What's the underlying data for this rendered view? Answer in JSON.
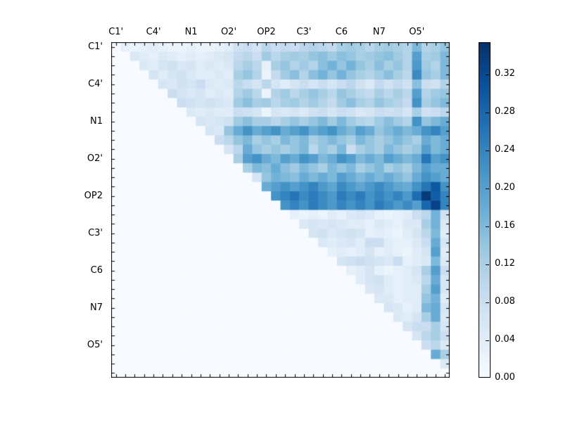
{
  "figure": {
    "background": "#ffffff"
  },
  "chart_data": {
    "type": "heatmap",
    "title": "",
    "colormap": "Blues",
    "vmin": 0.0,
    "vmax": 0.3533,
    "grid": false,
    "n_cells": 36,
    "axis_tick_labels": [
      "C1'",
      "C4'",
      "N1",
      "O2'",
      "OP2",
      "C3'",
      "C6",
      "N7",
      "O5'"
    ],
    "axis_tick_cell_indices": [
      0,
      4,
      8,
      12,
      16,
      20,
      24,
      28,
      32
    ],
    "colorbar": {
      "tick_values": [
        0.0,
        0.04,
        0.08,
        0.12,
        0.16,
        0.2,
        0.24,
        0.28,
        0.32
      ],
      "tick_labels": [
        "0.00",
        "0.04",
        "0.08",
        "0.12",
        "0.16",
        "0.20",
        "0.24",
        "0.28",
        "0.32"
      ],
      "position": "right"
    },
    "colormap_stops": [
      "#f7fbff",
      "#deebf7",
      "#c6dbef",
      "#9ecae1",
      "#6baed6",
      "#4292c6",
      "#2171b5",
      "#08519c",
      "#08306b"
    ],
    "matrix": [
      [
        0,
        0.03,
        0.02,
        0.03,
        0.04,
        0.03,
        0.02,
        0.02,
        0.03,
        0.02,
        0.02,
        0.03,
        0.04,
        0.07,
        0.08,
        0.06,
        0.1,
        0.08,
        0.09,
        0.08,
        0.1,
        0.11,
        0.1,
        0.09,
        0.12,
        0.13,
        0.12,
        0.1,
        0.12,
        0.13,
        0.12,
        0.11,
        0.16,
        0.11,
        0.12,
        0.14
      ],
      [
        0,
        0,
        0.05,
        0.04,
        0.03,
        0.05,
        0.04,
        0.03,
        0.04,
        0.03,
        0.04,
        0.05,
        0.06,
        0.09,
        0.1,
        0.08,
        0.13,
        0.1,
        0.12,
        0.13,
        0.12,
        0.14,
        0.15,
        0.13,
        0.15,
        0.14,
        0.12,
        0.13,
        0.14,
        0.15,
        0.13,
        0.11,
        0.2,
        0.12,
        0.13,
        0.16
      ],
      [
        0,
        0,
        0,
        0.05,
        0.04,
        0.06,
        0.07,
        0.05,
        0.06,
        0.04,
        0.05,
        0.04,
        0.05,
        0.1,
        0.12,
        0.1,
        0.03,
        0.12,
        0.14,
        0.11,
        0.13,
        0.11,
        0.15,
        0.17,
        0.14,
        0.17,
        0.14,
        0.12,
        0.15,
        0.12,
        0.14,
        0.11,
        0.21,
        0.13,
        0.11,
        0.16
      ],
      [
        0,
        0,
        0,
        0,
        0.06,
        0.04,
        0.06,
        0.07,
        0.05,
        0.04,
        0.04,
        0.05,
        0.04,
        0.12,
        0.14,
        0.11,
        0.02,
        0.09,
        0.13,
        0.15,
        0.11,
        0.15,
        0.17,
        0.14,
        0.17,
        0.14,
        0.12,
        0.11,
        0.13,
        0.15,
        0.12,
        0.1,
        0.23,
        0.14,
        0.12,
        0.16
      ],
      [
        0,
        0,
        0,
        0,
        0,
        0.06,
        0.05,
        0.07,
        0.06,
        0.08,
        0.05,
        0.04,
        0.05,
        0.1,
        0.08,
        0.06,
        0.1,
        0.06,
        0.04,
        0.06,
        0.08,
        0.06,
        0.08,
        0.06,
        0.08,
        0.1,
        0.07,
        0.05,
        0.09,
        0.07,
        0.09,
        0.07,
        0.15,
        0.08,
        0.07,
        0.11
      ],
      [
        0,
        0,
        0,
        0,
        0,
        0,
        0.08,
        0.06,
        0.05,
        0.06,
        0.04,
        0.05,
        0.04,
        0.11,
        0.13,
        0.1,
        0.02,
        0.11,
        0.13,
        0.1,
        0.12,
        0.14,
        0.12,
        0.1,
        0.14,
        0.12,
        0.1,
        0.09,
        0.12,
        0.1,
        0.12,
        0.1,
        0.2,
        0.11,
        0.13,
        0.14
      ],
      [
        0,
        0,
        0,
        0,
        0,
        0,
        0,
        0.08,
        0.07,
        0.06,
        0.07,
        0.06,
        0.05,
        0.13,
        0.15,
        0.12,
        0.13,
        0.1,
        0.12,
        0.13,
        0.11,
        0.13,
        0.11,
        0.09,
        0.13,
        0.15,
        0.12,
        0.11,
        0.14,
        0.12,
        0.11,
        0.09,
        0.22,
        0.12,
        0.14,
        0.16
      ],
      [
        0,
        0,
        0,
        0,
        0,
        0,
        0,
        0,
        0.05,
        0.04,
        0.05,
        0.04,
        0.04,
        0.08,
        0.07,
        0.06,
        0.02,
        0.06,
        0.05,
        0.06,
        0.05,
        0.07,
        0.08,
        0.06,
        0.08,
        0.07,
        0.05,
        0.06,
        0.08,
        0.07,
        0.08,
        0.06,
        0.12,
        0.07,
        0.08,
        0.1
      ],
      [
        0,
        0,
        0,
        0,
        0,
        0,
        0,
        0,
        0,
        0.06,
        0.05,
        0.06,
        0.07,
        0.13,
        0.15,
        0.12,
        0.12,
        0.1,
        0.12,
        0.14,
        0.12,
        0.14,
        0.16,
        0.13,
        0.16,
        0.13,
        0.11,
        0.1,
        0.13,
        0.15,
        0.13,
        0.11,
        0.22,
        0.14,
        0.16,
        0.18
      ],
      [
        0,
        0,
        0,
        0,
        0,
        0,
        0,
        0,
        0,
        0,
        0.06,
        0.05,
        0.14,
        0.18,
        0.22,
        0.18,
        0.2,
        0.22,
        0.18,
        0.2,
        0.22,
        0.18,
        0.2,
        0.22,
        0.18,
        0.16,
        0.2,
        0.18,
        0.14,
        0.16,
        0.18,
        0.16,
        0.18,
        0.22,
        0.24,
        0.2
      ],
      [
        0,
        0,
        0,
        0,
        0,
        0,
        0,
        0,
        0,
        0,
        0,
        0.08,
        0.1,
        0.14,
        0.16,
        0.12,
        0.14,
        0.12,
        0.16,
        0.14,
        0.16,
        0.12,
        0.14,
        0.16,
        0.14,
        0.12,
        0.16,
        0.14,
        0.12,
        0.14,
        0.16,
        0.14,
        0.12,
        0.18,
        0.16,
        0.18
      ],
      [
        0,
        0,
        0,
        0,
        0,
        0,
        0,
        0,
        0,
        0,
        0,
        0,
        0.06,
        0.1,
        0.18,
        0.14,
        0.12,
        0.14,
        0.12,
        0.14,
        0.16,
        0.1,
        0.14,
        0.12,
        0.16,
        0.08,
        0.12,
        0.14,
        0.12,
        0.16,
        0.14,
        0.12,
        0.14,
        0.2,
        0.16,
        0.18
      ],
      [
        0,
        0,
        0,
        0,
        0,
        0,
        0,
        0,
        0,
        0,
        0,
        0,
        0,
        0.12,
        0.2,
        0.22,
        0.18,
        0.16,
        0.2,
        0.18,
        0.22,
        0.2,
        0.16,
        0.18,
        0.22,
        0.2,
        0.16,
        0.18,
        0.16,
        0.2,
        0.18,
        0.16,
        0.18,
        0.26,
        0.2,
        0.22
      ],
      [
        0,
        0,
        0,
        0,
        0,
        0,
        0,
        0,
        0,
        0,
        0,
        0,
        0,
        0,
        0.12,
        0.16,
        0.15,
        0.18,
        0.15,
        0.13,
        0.16,
        0.14,
        0.12,
        0.16,
        0.14,
        0.16,
        0.12,
        0.14,
        0.16,
        0.12,
        0.14,
        0.12,
        0.16,
        0.2,
        0.18,
        0.18
      ],
      [
        0,
        0,
        0,
        0,
        0,
        0,
        0,
        0,
        0,
        0,
        0,
        0,
        0,
        0,
        0,
        0.06,
        0.14,
        0.17,
        0.16,
        0.15,
        0.18,
        0.16,
        0.18,
        0.16,
        0.2,
        0.18,
        0.16,
        0.18,
        0.16,
        0.18,
        0.16,
        0.14,
        0.18,
        0.22,
        0.2,
        0.18
      ],
      [
        0,
        0,
        0,
        0,
        0,
        0,
        0,
        0,
        0,
        0,
        0,
        0,
        0,
        0,
        0,
        0,
        0.18,
        0.2,
        0.22,
        0.2,
        0.22,
        0.24,
        0.21,
        0.19,
        0.23,
        0.21,
        0.19,
        0.21,
        0.23,
        0.21,
        0.19,
        0.18,
        0.22,
        0.26,
        0.3,
        0.22
      ],
      [
        0,
        0,
        0,
        0,
        0,
        0,
        0,
        0,
        0,
        0,
        0,
        0,
        0,
        0,
        0,
        0,
        0,
        0.22,
        0.24,
        0.26,
        0.23,
        0.25,
        0.23,
        0.21,
        0.25,
        0.23,
        0.25,
        0.22,
        0.24,
        0.22,
        0.24,
        0.21,
        0.27,
        0.34,
        0.29,
        0.24
      ],
      [
        0,
        0,
        0,
        0,
        0,
        0,
        0,
        0,
        0,
        0,
        0,
        0,
        0,
        0,
        0,
        0,
        0,
        0,
        0.22,
        0.24,
        0.22,
        0.25,
        0.23,
        0.21,
        0.24,
        0.22,
        0.24,
        0.22,
        0.25,
        0.23,
        0.21,
        0.23,
        0.2,
        0.28,
        0.33,
        0.24
      ],
      [
        0,
        0,
        0,
        0,
        0,
        0,
        0,
        0,
        0,
        0,
        0,
        0,
        0,
        0,
        0,
        0,
        0,
        0,
        0,
        0.03,
        0.02,
        0.03,
        0.02,
        0.04,
        0.03,
        0.05,
        0.06,
        0.05,
        0.03,
        0.02,
        0.03,
        0.04,
        0.08,
        0.1,
        0.17,
        0.07
      ],
      [
        0,
        0,
        0,
        0,
        0,
        0,
        0,
        0,
        0,
        0,
        0,
        0,
        0,
        0,
        0,
        0,
        0,
        0,
        0,
        0,
        0.05,
        0.06,
        0.05,
        0.06,
        0.05,
        0.04,
        0.04,
        0.03,
        0.05,
        0.04,
        0.03,
        0.05,
        0.05,
        0.12,
        0.17,
        0.05
      ],
      [
        0,
        0,
        0,
        0,
        0,
        0,
        0,
        0,
        0,
        0,
        0,
        0,
        0,
        0,
        0,
        0,
        0,
        0,
        0,
        0,
        0,
        0.06,
        0.07,
        0.05,
        0.06,
        0.07,
        0.06,
        0.03,
        0.04,
        0.03,
        0.02,
        0.04,
        0.06,
        0.1,
        0.16,
        0.04
      ],
      [
        0,
        0,
        0,
        0,
        0,
        0,
        0,
        0,
        0,
        0,
        0,
        0,
        0,
        0,
        0,
        0,
        0,
        0,
        0,
        0,
        0,
        0,
        0.05,
        0.04,
        0.05,
        0.06,
        0.04,
        0.08,
        0.08,
        0.04,
        0.03,
        0.03,
        0.05,
        0.08,
        0.18,
        0.06
      ],
      [
        0,
        0,
        0,
        0,
        0,
        0,
        0,
        0,
        0,
        0,
        0,
        0,
        0,
        0,
        0,
        0,
        0,
        0,
        0,
        0,
        0,
        0,
        0,
        0.03,
        0.04,
        0.03,
        0.04,
        0.06,
        0.03,
        0.04,
        0.03,
        0.02,
        0.04,
        0.06,
        0.2,
        0.04
      ],
      [
        0,
        0,
        0,
        0,
        0,
        0,
        0,
        0,
        0,
        0,
        0,
        0,
        0,
        0,
        0,
        0,
        0,
        0,
        0,
        0,
        0,
        0,
        0,
        0,
        0.06,
        0.07,
        0.08,
        0.07,
        0.06,
        0.05,
        0.08,
        0.03,
        0.04,
        0.05,
        0.16,
        0.05
      ],
      [
        0,
        0,
        0,
        0,
        0,
        0,
        0,
        0,
        0,
        0,
        0,
        0,
        0,
        0,
        0,
        0,
        0,
        0,
        0,
        0,
        0,
        0,
        0,
        0,
        0,
        0.03,
        0.04,
        0.06,
        0.03,
        0.02,
        0.03,
        0.04,
        0.06,
        0.12,
        0.2,
        0.08
      ],
      [
        0,
        0,
        0,
        0,
        0,
        0,
        0,
        0,
        0,
        0,
        0,
        0,
        0,
        0,
        0,
        0,
        0,
        0,
        0,
        0,
        0,
        0,
        0,
        0,
        0,
        0,
        0.04,
        0.06,
        0.07,
        0.04,
        0.03,
        0.04,
        0.05,
        0.1,
        0.18,
        0.06
      ],
      [
        0,
        0,
        0,
        0,
        0,
        0,
        0,
        0,
        0,
        0,
        0,
        0,
        0,
        0,
        0,
        0,
        0,
        0,
        0,
        0,
        0,
        0,
        0,
        0,
        0,
        0,
        0,
        0.05,
        0.06,
        0.04,
        0.03,
        0.04,
        0.04,
        0.12,
        0.2,
        0.06
      ],
      [
        0,
        0,
        0,
        0,
        0,
        0,
        0,
        0,
        0,
        0,
        0,
        0,
        0,
        0,
        0,
        0,
        0,
        0,
        0,
        0,
        0,
        0,
        0,
        0,
        0,
        0,
        0,
        0,
        0.05,
        0.05,
        0.03,
        0.04,
        0.04,
        0.14,
        0.17,
        0.04
      ],
      [
        0,
        0,
        0,
        0,
        0,
        0,
        0,
        0,
        0,
        0,
        0,
        0,
        0,
        0,
        0,
        0,
        0,
        0,
        0,
        0,
        0,
        0,
        0,
        0,
        0,
        0,
        0,
        0,
        0,
        0.06,
        0.05,
        0.03,
        0.04,
        0.16,
        0.18,
        0.06
      ],
      [
        0,
        0,
        0,
        0,
        0,
        0,
        0,
        0,
        0,
        0,
        0,
        0,
        0,
        0,
        0,
        0,
        0,
        0,
        0,
        0,
        0,
        0,
        0,
        0,
        0,
        0,
        0,
        0,
        0,
        0,
        0.05,
        0.04,
        0.06,
        0.12,
        0.18,
        0.05
      ],
      [
        0,
        0,
        0,
        0,
        0,
        0,
        0,
        0,
        0,
        0,
        0,
        0,
        0,
        0,
        0,
        0,
        0,
        0,
        0,
        0,
        0,
        0,
        0,
        0,
        0,
        0,
        0,
        0,
        0,
        0,
        0,
        0.06,
        0.08,
        0.08,
        0.12,
        0.06
      ],
      [
        0,
        0,
        0,
        0,
        0,
        0,
        0,
        0,
        0,
        0,
        0,
        0,
        0,
        0,
        0,
        0,
        0,
        0,
        0,
        0,
        0,
        0,
        0,
        0,
        0,
        0,
        0,
        0,
        0,
        0,
        0,
        0,
        0.06,
        0.1,
        0.12,
        0.08
      ],
      [
        0,
        0,
        0,
        0,
        0,
        0,
        0,
        0,
        0,
        0,
        0,
        0,
        0,
        0,
        0,
        0,
        0,
        0,
        0,
        0,
        0,
        0,
        0,
        0,
        0,
        0,
        0,
        0,
        0,
        0,
        0,
        0,
        0,
        0.08,
        0.1,
        0.05
      ],
      [
        0,
        0,
        0,
        0,
        0,
        0,
        0,
        0,
        0,
        0,
        0,
        0,
        0,
        0,
        0,
        0,
        0,
        0,
        0,
        0,
        0,
        0,
        0,
        0,
        0,
        0,
        0,
        0,
        0,
        0,
        0,
        0,
        0,
        0,
        0.18,
        0.12
      ],
      [
        0,
        0,
        0,
        0,
        0,
        0,
        0,
        0,
        0,
        0,
        0,
        0,
        0,
        0,
        0,
        0,
        0,
        0,
        0,
        0,
        0,
        0,
        0,
        0,
        0,
        0,
        0,
        0,
        0,
        0,
        0,
        0,
        0,
        0,
        0,
        0.05
      ],
      [
        0,
        0,
        0,
        0,
        0,
        0,
        0,
        0,
        0,
        0,
        0,
        0,
        0,
        0,
        0,
        0,
        0,
        0,
        0,
        0,
        0,
        0,
        0,
        0,
        0,
        0,
        0,
        0,
        0,
        0,
        0,
        0,
        0,
        0,
        0,
        0
      ]
    ]
  }
}
